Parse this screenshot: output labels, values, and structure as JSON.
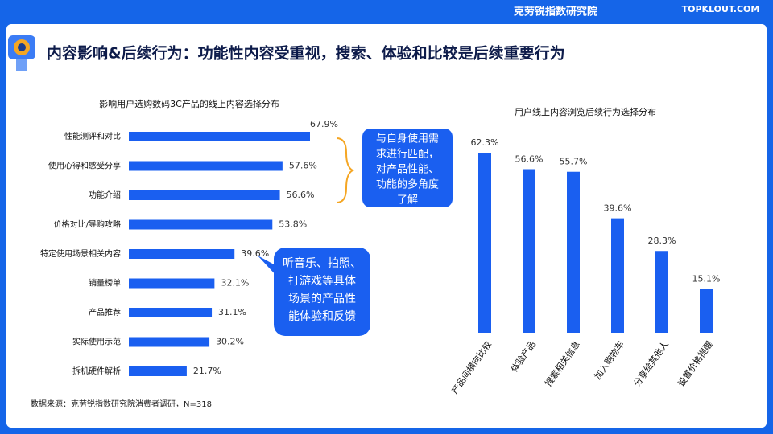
{
  "header": {
    "brand": "克劳锐指数研究院",
    "logo": "TOPKLOUT.COM"
  },
  "title": "内容影响&后续行为：功能性内容受重视，搜索、体验和比较是后续重要行为",
  "chart_data": [
    {
      "type": "bar",
      "orientation": "horizontal",
      "title": "影响用户选购数码3C产品的线上内容选择分布",
      "categories": [
        "性能测评和对比",
        "使用心得和感受分享",
        "功能介绍",
        "价格对比/导购攻略",
        "特定使用场景相关内容",
        "销量榜单",
        "产品推荐",
        "实际使用示范",
        "拆机硬件解析"
      ],
      "values": [
        67.9,
        57.6,
        56.6,
        53.8,
        39.6,
        32.1,
        31.1,
        30.2,
        21.7
      ],
      "value_labels": [
        "67.9%",
        "57.6%",
        "56.6%",
        "53.8%",
        "39.6%",
        "32.1%",
        "31.1%",
        "30.2%",
        "21.7%"
      ],
      "color": "#1a5ff0"
    },
    {
      "type": "bar",
      "orientation": "vertical",
      "title": "用户线上内容浏览后续行为选择分布",
      "categories": [
        "产品间横向比较",
        "体验产品",
        "搜索相关信息",
        "加入购物车",
        "分享给其他人",
        "设置价格提醒"
      ],
      "values": [
        62.3,
        56.6,
        55.7,
        39.6,
        28.3,
        15.1
      ],
      "value_labels": [
        "62.3%",
        "56.6%",
        "55.7%",
        "39.6%",
        "28.3%",
        "15.1%"
      ],
      "color": "#1a5ff0"
    }
  ],
  "callouts": [
    {
      "lines": [
        "与自身使用需",
        "求进行匹配，",
        "对产品性能、",
        "功能的多角度",
        "了解"
      ]
    },
    {
      "lines": [
        "听音乐、拍照、",
        "打游戏等具体",
        "场景的产品性",
        "能体验和反馈"
      ]
    }
  ],
  "source": "数据来源：克劳锐指数研究院消费者调研，N=318"
}
